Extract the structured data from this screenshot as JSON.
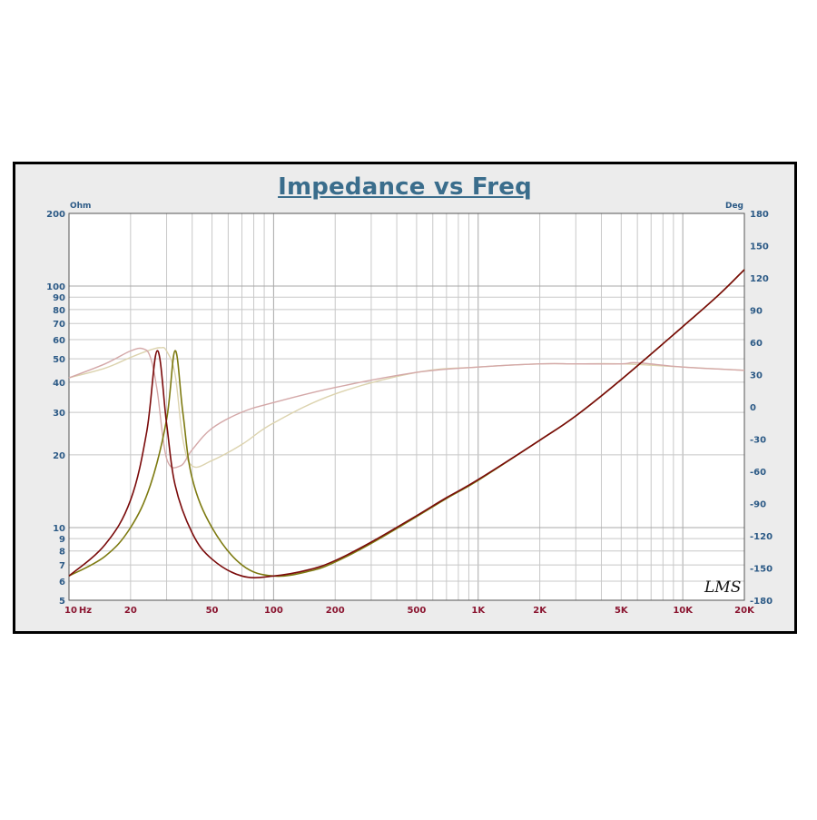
{
  "chart_data": {
    "type": "line",
    "title": "Impedance vs Freq",
    "x_scale": "log",
    "xlim": [
      10,
      20000
    ],
    "ylim_left": [
      5,
      200
    ],
    "y_left_scale": "log",
    "ylim_right": [
      -180,
      180
    ],
    "y_left_unit": "Ohm",
    "y_right_unit": "Deg",
    "x_unit": "Hz",
    "x_ticks": [
      "10",
      "20",
      "50",
      "100",
      "200",
      "500",
      "1K",
      "2K",
      "5K",
      "10K",
      "20K"
    ],
    "y_left_ticks": [
      "5",
      "6",
      "7",
      "8",
      "9",
      "10",
      "20",
      "30",
      "40",
      "50",
      "60",
      "70",
      "80",
      "90",
      "100",
      "200"
    ],
    "y_right_ticks": [
      "180",
      "150",
      "120",
      "90",
      "60",
      "30",
      "0",
      "-30",
      "-60",
      "-90",
      "-120",
      "-150",
      "-180"
    ],
    "grid": true,
    "watermark": "LMS",
    "colors": {
      "impedance_1": "#7a0a0a",
      "impedance_2": "#7d7a10",
      "phase_1": "#d4a8a8",
      "phase_2": "#dcd3ae",
      "grid": "#c8c8c8",
      "plot_bg": "#ffffff",
      "frame_bg": "#ececec"
    },
    "series": [
      {
        "axis": "left",
        "x": [
          10,
          15,
          20,
          24,
          27,
          30,
          33,
          40,
          50,
          70,
          100,
          150,
          200,
          300,
          500,
          700,
          1000,
          2000,
          3000,
          5000,
          10000,
          15000,
          20000
        ],
        "y": [
          6.3,
          8.5,
          13,
          25,
          54,
          27,
          15,
          9.5,
          7.4,
          6.3,
          6.3,
          6.7,
          7.3,
          8.7,
          11.2,
          13.3,
          15.8,
          23,
          29,
          41,
          68,
          92,
          117
        ]
      },
      {
        "axis": "left",
        "x": [
          10,
          15,
          20,
          25,
          30,
          33,
          36,
          40,
          50,
          70,
          100,
          150,
          200,
          300,
          500,
          700,
          1000,
          2000,
          3000,
          5000,
          10000,
          15000,
          20000
        ],
        "y": [
          6.3,
          7.6,
          10,
          15,
          28,
          54,
          30,
          16,
          10,
          7,
          6.3,
          6.6,
          7.2,
          8.6,
          11.1,
          13.2,
          15.7,
          23,
          29,
          41,
          68,
          92,
          117
        ]
      },
      {
        "axis": "right",
        "x": [
          10,
          15,
          20,
          23,
          25,
          27,
          30,
          35,
          40,
          50,
          70,
          100,
          200,
          500,
          1000,
          2000,
          3000,
          5000,
          6000,
          10000,
          20000
        ],
        "y": [
          27,
          40,
          52,
          54,
          46,
          15,
          -48,
          -55,
          -40,
          -20,
          -5,
          4,
          18,
          32,
          37,
          40,
          40,
          40,
          41,
          37,
          34
        ]
      },
      {
        "axis": "right",
        "x": [
          10,
          15,
          20,
          25,
          28,
          30,
          33,
          36,
          40,
          50,
          70,
          100,
          200,
          500,
          1000,
          2000,
          3000,
          5000,
          10000,
          20000
        ],
        "y": [
          27,
          36,
          46,
          53,
          55,
          52,
          30,
          -30,
          -55,
          -50,
          -35,
          -15,
          12,
          32,
          37,
          40,
          40,
          40,
          37,
          34
        ]
      }
    ]
  }
}
